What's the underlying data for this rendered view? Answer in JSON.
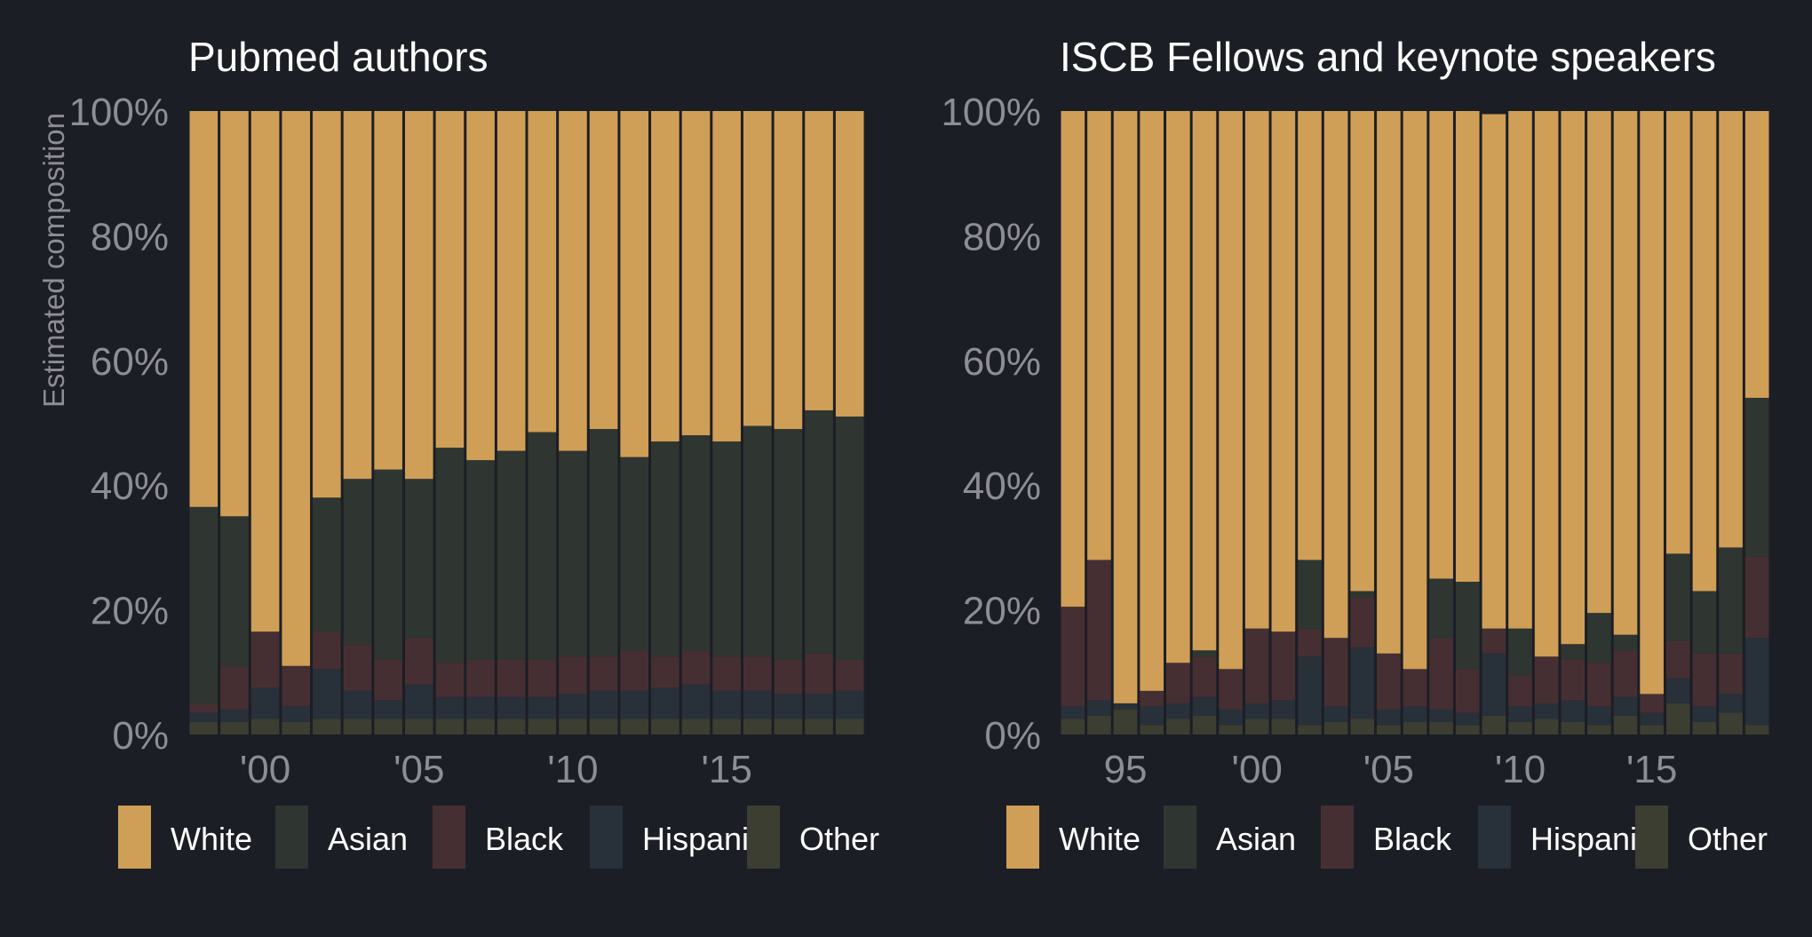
{
  "shared": {
    "ylabel": "Estimated composition",
    "ytick_labels": [
      "0%",
      "20%",
      "40%",
      "60%",
      "80%",
      "100%"
    ],
    "legend": [
      {
        "name": "White",
        "color": "#cf9f57"
      },
      {
        "name": "Asian",
        "color": "#2f3631"
      },
      {
        "name": "Black",
        "color": "#462f32"
      },
      {
        "name": "Hispanic",
        "color": "#283039"
      },
      {
        "name": "Other",
        "color": "#3b3e31"
      }
    ]
  },
  "chart_data": [
    {
      "type": "bar",
      "stacked": true,
      "title": "Pubmed authors",
      "xlabel": "",
      "ylabel": "Estimated composition",
      "ylim": [
        0,
        100
      ],
      "x": [
        1998,
        1999,
        2000,
        2001,
        2002,
        2003,
        2004,
        2005,
        2006,
        2007,
        2008,
        2009,
        2010,
        2011,
        2012,
        2013,
        2014,
        2015,
        2016,
        2017,
        2018,
        2019
      ],
      "xticks": [
        2000,
        2005,
        2010,
        2015
      ],
      "xtick_labels": [
        "'00",
        "'05",
        "'10",
        "'15"
      ],
      "series": [
        {
          "name": "Other",
          "values": [
            2,
            2,
            2.5,
            2,
            2.5,
            2.5,
            2.5,
            2.5,
            2.5,
            2.5,
            2.5,
            2.5,
            2.5,
            2.5,
            2.5,
            2.5,
            2.5,
            2.5,
            2.5,
            2.5,
            2.5,
            2.5
          ]
        },
        {
          "name": "Hispanic",
          "values": [
            1.5,
            2,
            5,
            2.5,
            8,
            4.5,
            3,
            5.5,
            3.5,
            3.5,
            3.5,
            3.5,
            4,
            4.5,
            4.5,
            5,
            5.5,
            4.5,
            4.5,
            4,
            4,
            4.5
          ]
        },
        {
          "name": "Black",
          "values": [
            1.5,
            7,
            9,
            6.5,
            6,
            7.5,
            6.5,
            7.5,
            5.5,
            6,
            6,
            6,
            6,
            5.5,
            6.5,
            5,
            5.5,
            5.5,
            5.5,
            5.5,
            6.5,
            5
          ]
        },
        {
          "name": "Asian",
          "values": [
            31.5,
            24,
            0,
            0,
            21.5,
            26.5,
            30.5,
            25.5,
            34.5,
            32,
            33.5,
            36.5,
            33,
            36.5,
            31,
            34.5,
            34.5,
            34.5,
            37,
            37,
            39,
            39
          ]
        },
        {
          "name": "White",
          "values": [
            63.5,
            65,
            83.5,
            89,
            62,
            59,
            57.5,
            59,
            54,
            56,
            54.5,
            51.5,
            54.5,
            51,
            55.5,
            53,
            52,
            53,
            50.5,
            51,
            48,
            49
          ]
        }
      ]
    },
    {
      "type": "bar",
      "stacked": true,
      "title": "ISCB Fellows and keynote speakers",
      "xlabel": "",
      "ylabel": "",
      "ylim": [
        0,
        100
      ],
      "x": [
        1993,
        1994,
        1995,
        1996,
        1997,
        1998,
        1999,
        2000,
        2001,
        2002,
        2003,
        2004,
        2005,
        2006,
        2007,
        2008,
        2009,
        2010,
        2011,
        2012,
        2013,
        2014,
        2015,
        2016,
        2017,
        2018,
        2019
      ],
      "xticks": [
        1995,
        2000,
        2005,
        2010,
        2015
      ],
      "xtick_labels": [
        "95",
        "'00",
        "'05",
        "'10",
        "'15"
      ],
      "series": [
        {
          "name": "Other",
          "values": [
            2.5,
            3,
            4,
            1.5,
            2.5,
            3,
            1.5,
            2.5,
            2.5,
            1.5,
            2,
            2.5,
            1.5,
            2,
            2,
            1.5,
            3,
            2,
            2.5,
            2,
            1.5,
            3,
            1.5,
            5,
            2,
            3.5,
            1.5
          ]
        },
        {
          "name": "Hispanic",
          "values": [
            2,
            2.5,
            1,
            3,
            2.5,
            3,
            2.5,
            2.5,
            3,
            11,
            2.5,
            11.5,
            2.5,
            2.5,
            2,
            2,
            10,
            2.5,
            2.5,
            3.5,
            3,
            3,
            2,
            4,
            2.5,
            3,
            14
          ]
        },
        {
          "name": "Black",
          "values": [
            16,
            22.5,
            0,
            2.5,
            6.5,
            6.5,
            6.5,
            12,
            11,
            4.5,
            11,
            8,
            9,
            6,
            11.5,
            7,
            4,
            5,
            7.5,
            6.5,
            7,
            7.5,
            3,
            6,
            8.5,
            6.5,
            13
          ]
        },
        {
          "name": "Asian",
          "values": [
            0,
            0,
            0,
            0,
            0,
            1,
            0,
            0,
            0,
            11,
            0,
            1,
            0,
            0,
            9.5,
            14,
            0,
            7.5,
            0,
            2.5,
            8,
            2.5,
            0,
            14,
            10,
            17,
            25.5
          ]
        },
        {
          "name": "White",
          "values": [
            79.5,
            72,
            95,
            93,
            88.5,
            86.5,
            89.5,
            83,
            83.5,
            72,
            84.5,
            77,
            87,
            89.5,
            75,
            75.5,
            82.5,
            83,
            87.5,
            85.5,
            80.5,
            84,
            93.5,
            71,
            77,
            70,
            46
          ]
        }
      ]
    }
  ]
}
